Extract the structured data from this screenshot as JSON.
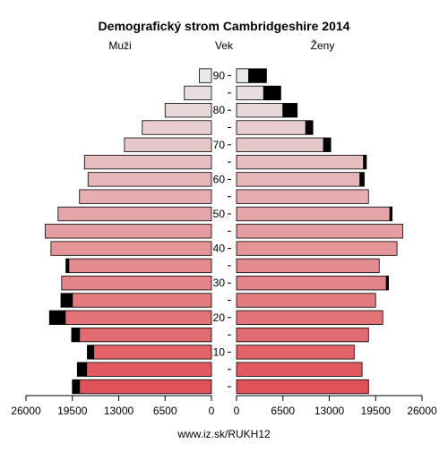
{
  "chart_data": {
    "type": "bar",
    "title": "Demografický strom Cambridgeshire 2014",
    "left_label": "Muži",
    "center_label": "Vek",
    "right_label": "Ženy",
    "footer": "www.iz.sk/RUKH12",
    "age_groups": [
      "0-4",
      "5-9",
      "10-14",
      "15-19",
      "20-24",
      "25-29",
      "30-34",
      "35-39",
      "40-44",
      "45-49",
      "50-54",
      "55-59",
      "60-64",
      "65-69",
      "70-74",
      "75-79",
      "80-84",
      "85-89",
      "90+"
    ],
    "age_tick_labels": [
      "10",
      "20",
      "30",
      "40",
      "50",
      "60",
      "70",
      "80",
      "90"
    ],
    "age_tick_groups": [
      2,
      4,
      6,
      8,
      10,
      12,
      14,
      16,
      18
    ],
    "x_tick_labels": [
      "26000",
      "19500",
      "13000",
      "6500",
      "0",
      "0",
      "6500",
      "13000",
      "19500",
      "26000"
    ],
    "x_max": 26000,
    "series": [
      {
        "name": "Muži",
        "values": [
          18500,
          17500,
          16500,
          18500,
          20500,
          19500,
          21000,
          20000,
          22500,
          23300,
          21500,
          18500,
          17300,
          17800,
          12200,
          9700,
          6500,
          3800,
          1700
        ]
      },
      {
        "name": "Ženy",
        "values": [
          18500,
          17600,
          16500,
          18500,
          20500,
          19500,
          21000,
          20000,
          22500,
          23300,
          21500,
          18500,
          17300,
          17800,
          12200,
          9700,
          6500,
          3800,
          1700
        ]
      }
    ],
    "surplus": {
      "Muži": [
        1000,
        1300,
        900,
        1100,
        2200,
        1600,
        0,
        400,
        0,
        0,
        0,
        0,
        0,
        0,
        0,
        0,
        0,
        0,
        0
      ],
      "Ženy": [
        0,
        0,
        0,
        0,
        0,
        0,
        300,
        0,
        0,
        0,
        300,
        0,
        600,
        400,
        1000,
        1000,
        2000,
        2400,
        2500
      ]
    },
    "colors": {
      "young": "#e05258",
      "old": "#e8e8e8",
      "surplus": "#000000",
      "stroke": "#000000"
    }
  }
}
